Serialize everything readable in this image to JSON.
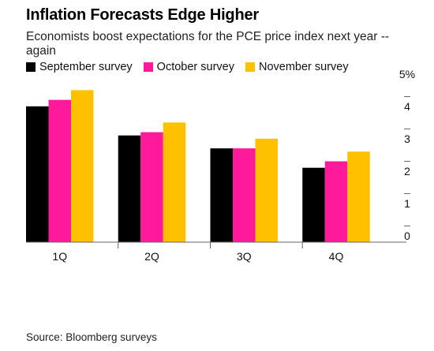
{
  "header": {
    "title": "Inflation Forecasts Edge Higher",
    "subtitle": "Economists boost expectations for the PCE price index next year -- again"
  },
  "footer": {
    "source": "Source: Bloomberg surveys"
  },
  "colors": {
    "september": "#000000",
    "october": "#ff1a9c",
    "november": "#ffc000",
    "axis": "#666666"
  },
  "chart_data": {
    "type": "bar",
    "categories": [
      "1Q",
      "2Q",
      "3Q",
      "4Q"
    ],
    "series": [
      {
        "name": "September survey",
        "values": [
          4.2,
          3.3,
          2.9,
          2.3
        ]
      },
      {
        "name": "October survey",
        "values": [
          4.4,
          3.4,
          2.9,
          2.5
        ]
      },
      {
        "name": "November survey",
        "values": [
          4.7,
          3.7,
          3.2,
          2.8
        ]
      }
    ],
    "ylim": [
      0,
      5
    ],
    "yticks": [
      "0",
      "1",
      "2",
      "3",
      "4",
      "5%"
    ],
    "grid": false,
    "legend_position": "top-left"
  }
}
